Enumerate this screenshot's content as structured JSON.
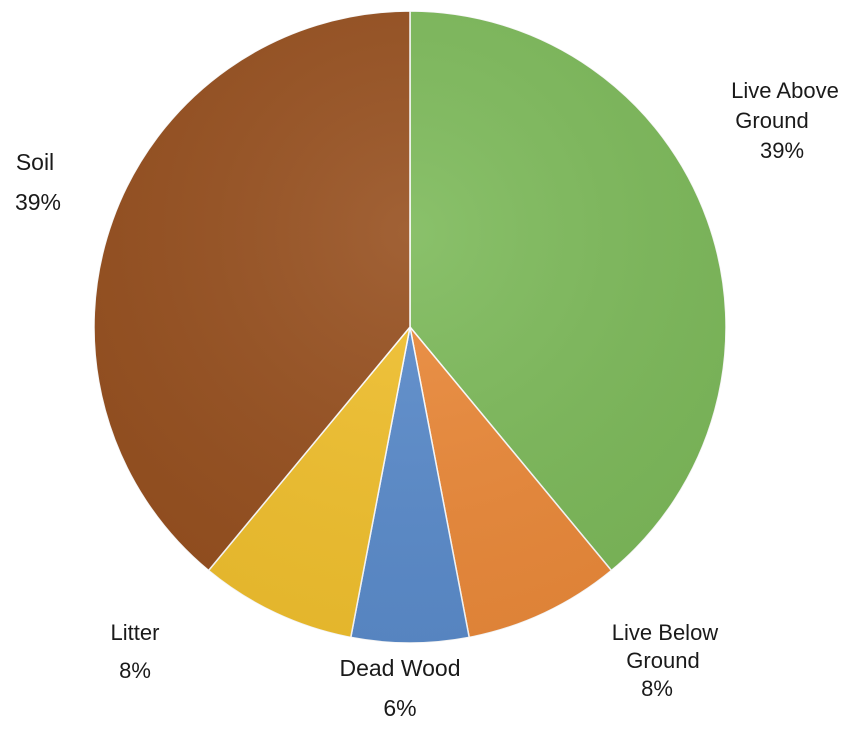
{
  "chart_data": {
    "type": "pie",
    "title": "",
    "start_angle_deg": 0,
    "direction": "clockwise",
    "slices": [
      {
        "label": "Live Above Ground",
        "label_lines": [
          "Live Above",
          "Ground",
          "39%"
        ],
        "value": 39,
        "percent_label": "39%",
        "color": "#7dba5a"
      },
      {
        "label": "Live Below Ground",
        "label_lines": [
          "Live Below",
          "Ground",
          "8%"
        ],
        "value": 8,
        "percent_label": "8%",
        "color": "#ec8a3a"
      },
      {
        "label": "Dead Wood",
        "label_lines": [
          "Dead Wood",
          "6%"
        ],
        "value": 6,
        "percent_label": "6%",
        "color": "#5b8ccc"
      },
      {
        "label": "Litter",
        "label_lines": [
          "Litter",
          "8%"
        ],
        "value": 8,
        "percent_label": "8%",
        "color": "#f2c12e"
      },
      {
        "label": "Soil",
        "label_lines": [
          "Soil",
          "39%"
        ],
        "value": 39,
        "percent_label": "39%",
        "color": "#97501f"
      }
    ]
  }
}
